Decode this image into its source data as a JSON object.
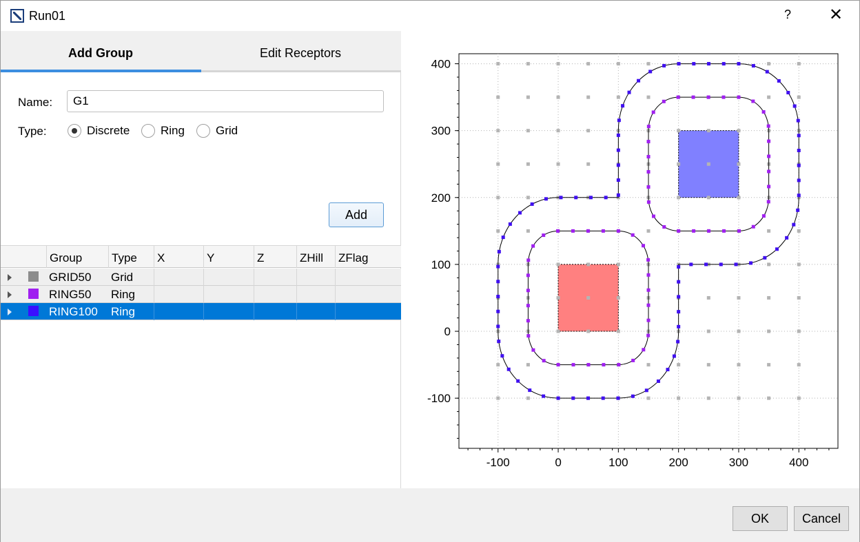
{
  "window": {
    "title": "Run01",
    "help_label": "?",
    "close_label": "✕"
  },
  "tabs": [
    {
      "label": "Add Group",
      "active": true
    },
    {
      "label": "Edit Receptors",
      "active": false
    }
  ],
  "form": {
    "name_label": "Name:",
    "name_value": "G1",
    "type_label": "Type:",
    "type_options": [
      "Discrete",
      "Ring",
      "Grid"
    ],
    "type_selected": "Discrete",
    "add_label": "Add"
  },
  "table": {
    "columns": [
      "Group",
      "Type",
      "X",
      "Y",
      "Z",
      "ZHill",
      "ZFlag"
    ],
    "rows": [
      {
        "group": "GRID50",
        "type": "Grid",
        "color": "#8c8c8c",
        "selected": false
      },
      {
        "group": "RING50",
        "type": "Ring",
        "color": "#a020f0",
        "selected": false
      },
      {
        "group": "RING100",
        "type": "Ring",
        "color": "#3a10ff",
        "selected": true
      }
    ]
  },
  "chart_data": {
    "type": "scatter",
    "xlim": [
      -165,
      465
    ],
    "ylim": [
      -175,
      415
    ],
    "x_ticks": [
      -100,
      0,
      100,
      200,
      300,
      400
    ],
    "y_ticks": [
      -100,
      0,
      100,
      200,
      300,
      400
    ],
    "x_tick_labels": [
      "-100",
      "0",
      "100",
      "200",
      "300",
      "400"
    ],
    "y_tick_labels": [
      "-100",
      "0",
      "100",
      "200",
      "300",
      "400"
    ],
    "grid": true,
    "sources": [
      {
        "x0": 0,
        "y0": 0,
        "x1": 100,
        "y1": 100,
        "color": "#ff8080"
      },
      {
        "x0": 200,
        "y0": 200,
        "x1": 300,
        "y1": 300,
        "color": "#8080ff"
      }
    ],
    "series": [
      {
        "group": "GRID50",
        "kind": "grid",
        "color": "#b4b4b4",
        "x_start": -100,
        "x_end": 400,
        "y_start": -100,
        "y_end": 400,
        "spacing": 50
      },
      {
        "group": "RING50",
        "kind": "ring",
        "color": "#a020f0",
        "distance": 50,
        "spacing": 25
      },
      {
        "group": "RING100",
        "kind": "ring",
        "color": "#4010f0",
        "distance": 100,
        "spacing": 25
      }
    ]
  },
  "buttons": {
    "ok": "OK",
    "cancel": "Cancel"
  }
}
